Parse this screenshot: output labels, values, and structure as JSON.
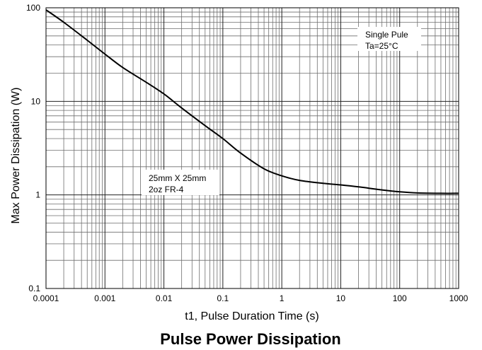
{
  "chart_data": {
    "type": "line",
    "title": "Pulse Power Dissipation",
    "xlabel": "t1, Pulse Duration Time (s)",
    "ylabel": "Max Power Dissipation  (W)",
    "x_scale": "log",
    "y_scale": "log",
    "xlim": [
      0.0001,
      1000
    ],
    "ylim": [
      0.1,
      100
    ],
    "grid": true,
    "x_ticks": [
      {
        "value": 0.0001,
        "label": "0.0001"
      },
      {
        "value": 0.001,
        "label": "0.001"
      },
      {
        "value": 0.01,
        "label": "0.01"
      },
      {
        "value": 0.1,
        "label": "0.1"
      },
      {
        "value": 1,
        "label": "1"
      },
      {
        "value": 10,
        "label": "10"
      },
      {
        "value": 100,
        "label": "100"
      },
      {
        "value": 1000,
        "label": "1000"
      }
    ],
    "y_ticks": [
      {
        "value": 0.1,
        "label": "0.1"
      },
      {
        "value": 1,
        "label": "1"
      },
      {
        "value": 10,
        "label": "10"
      },
      {
        "value": 100,
        "label": "100"
      }
    ],
    "annotations": [
      {
        "lines": [
          "Single Pule",
          "Ta=25°C"
        ]
      },
      {
        "lines": [
          "25mm X 25mm",
          "2oz FR-4"
        ]
      }
    ],
    "series": [
      {
        "x": [
          0.0001,
          0.0002,
          0.0005,
          0.001,
          0.002,
          0.005,
          0.01,
          0.02,
          0.05,
          0.1,
          0.2,
          0.5,
          1,
          2,
          5,
          10,
          20,
          50,
          100,
          200,
          500,
          1000
        ],
        "y": [
          95,
          70,
          45,
          32,
          23,
          16,
          12,
          8.5,
          5.5,
          4,
          2.8,
          1.9,
          1.6,
          1.43,
          1.33,
          1.28,
          1.22,
          1.13,
          1.08,
          1.05,
          1.04,
          1.04
        ]
      }
    ]
  }
}
